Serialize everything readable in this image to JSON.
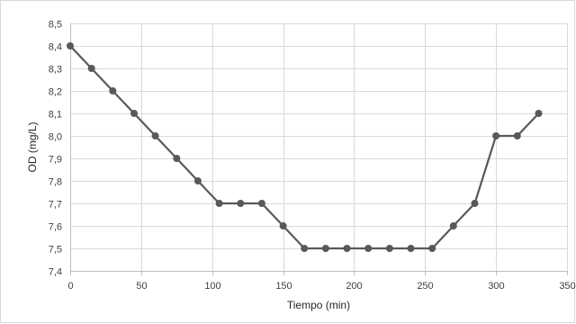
{
  "chart_data": {
    "type": "line",
    "title": "",
    "xlabel": "Tiempo (min)",
    "ylabel": "OD (mg/L)",
    "xlim": [
      0,
      350
    ],
    "ylim": [
      7.4,
      8.5
    ],
    "x_ticks": [
      0,
      50,
      100,
      150,
      200,
      250,
      300,
      350
    ],
    "x_tick_labels": [
      "0",
      "50",
      "100",
      "150",
      "200",
      "250",
      "300",
      "350"
    ],
    "y_ticks": [
      7.4,
      7.5,
      7.6,
      7.7,
      7.8,
      7.9,
      8.0,
      8.1,
      8.2,
      8.3,
      8.4,
      8.5
    ],
    "y_tick_labels": [
      "7,4",
      "7,5",
      "7,6",
      "7,7",
      "7,8",
      "7,9",
      "8,0",
      "8,1",
      "8,2",
      "8,3",
      "8,4",
      "8,5"
    ],
    "grid": true,
    "legend": "none",
    "series": [
      {
        "color": "#595959",
        "x": [
          0,
          15,
          30,
          45,
          60,
          75,
          90,
          105,
          120,
          135,
          150,
          165,
          180,
          195,
          210,
          225,
          240,
          255,
          270,
          285,
          300,
          315,
          330
        ],
        "y": [
          8.4,
          8.3,
          8.2,
          8.1,
          8.0,
          7.9,
          7.8,
          7.7,
          7.7,
          7.7,
          7.6,
          7.5,
          7.5,
          7.5,
          7.5,
          7.5,
          7.5,
          7.5,
          7.6,
          7.7,
          8.0,
          8.0,
          8.1
        ]
      }
    ],
    "colors": {
      "grid": "#d9d9d9",
      "axis": "#bfbfbf"
    }
  }
}
